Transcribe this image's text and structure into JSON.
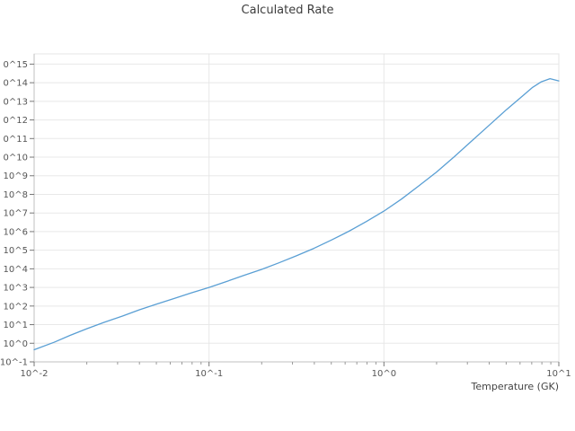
{
  "chart": {
    "title": "Calculated Rate",
    "x_axis_label": "Temperature (GK)",
    "x_tick_labels": [
      "10^-2",
      "10^-1",
      "10^0",
      "10^1"
    ],
    "x_tick_exponents": [
      -2,
      -1,
      0,
      1
    ],
    "y_tick_labels": [
      "0^15",
      "0^14",
      "0^13",
      "0^12",
      "0^11",
      "0^10",
      "10^9",
      "10^8",
      "10^7",
      "10^6",
      "10^5",
      "10^4",
      "10^3",
      "10^2",
      "10^1",
      "10^0",
      "10^-1"
    ],
    "y_tick_exponents": [
      15,
      14,
      13,
      12,
      11,
      10,
      9,
      8,
      7,
      6,
      5,
      4,
      3,
      2,
      1,
      0,
      -1
    ],
    "colors": {
      "line": "#5a9fd4",
      "grid": "#e8e8e8",
      "frame": "#e5e5e5",
      "axis": "#c0c0c0",
      "tick": "#777777",
      "tick_minor": "#999999",
      "text": "#555555",
      "title": "#3d3d3d"
    }
  },
  "chart_data": {
    "type": "line",
    "title": "Calculated Rate",
    "xlabel": "Temperature (GK)",
    "ylabel": "",
    "x_scale": "log",
    "y_scale": "log",
    "xlim_log10": [
      -2,
      1
    ],
    "ylim_log10": [
      -1,
      15.55
    ],
    "grid": true,
    "legend": "none",
    "series_name": "Calculated Rate",
    "x": [
      0.01,
      0.013,
      0.016,
      0.02,
      0.025,
      0.032,
      0.04,
      0.05,
      0.063,
      0.079,
      0.1,
      0.126,
      0.158,
      0.2,
      0.251,
      0.316,
      0.398,
      0.501,
      0.631,
      0.794,
      1.0,
      1.26,
      1.58,
      2.0,
      2.51,
      3.16,
      3.98,
      5.01,
      6.31,
      7.08,
      7.94,
      8.91,
      10.0
    ],
    "y_log10": [
      -0.35,
      0.05,
      0.42,
      0.78,
      1.12,
      1.46,
      1.8,
      2.1,
      2.4,
      2.7,
      3.0,
      3.32,
      3.64,
      3.97,
      4.32,
      4.7,
      5.1,
      5.55,
      6.02,
      6.54,
      7.1,
      7.75,
      8.45,
      9.2,
      10.0,
      10.85,
      11.7,
      12.55,
      13.35,
      13.75,
      14.05,
      14.22,
      14.1
    ]
  }
}
